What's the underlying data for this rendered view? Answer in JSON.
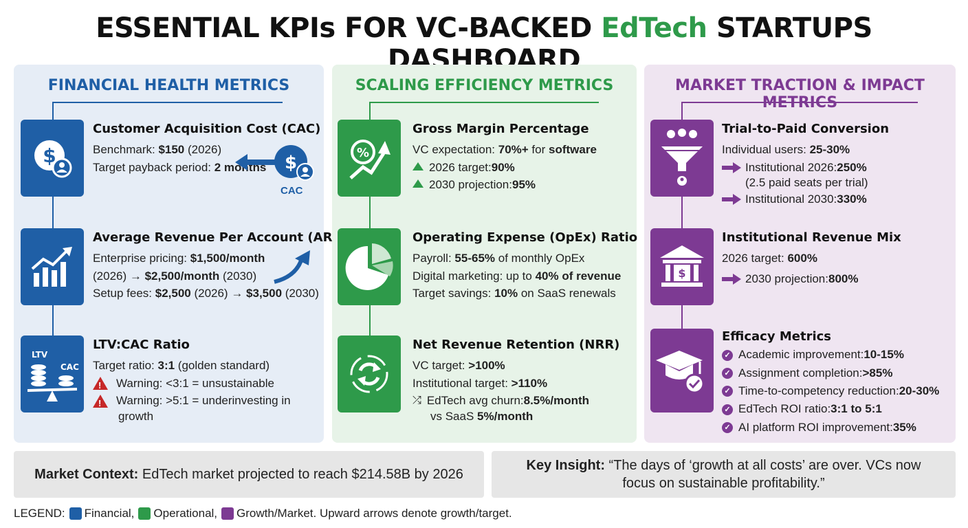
{
  "title": {
    "part1": "ESSENTIAL KPIs FOR VC-BACKED ",
    "accent": "EdTech",
    "part2": " STARTUPS DASHBOARD"
  },
  "colors": {
    "financial": "#1f5fa6",
    "operational": "#2e9a4a",
    "growth": "#7d3a93",
    "warning": "#c62828"
  },
  "financial": {
    "title": "FINANCIAL HEALTH METRICS",
    "cac": {
      "icon": "dollar-user-icon",
      "heading": "Customer Acquisition Cost (CAC)",
      "benchmark_label": "Benchmark: ",
      "benchmark_value": "$150",
      "benchmark_year": " (2026)",
      "payback_label": "Target payback period: ",
      "payback_value": "2 months",
      "badge": "CAC"
    },
    "arpa": {
      "icon": "growth-bars-icon",
      "heading": "Average Revenue Per Account (ARPA)",
      "line1_label": "Enterprise pricing: ",
      "line1_value": "$1,500/month",
      "line2_pre": "(2026) → ",
      "line2_value": "$2,500/month",
      "line2_post": " (2030)",
      "line3_label": "Setup fees: ",
      "line3_v1": "$2,500",
      "line3_mid": " (2026) → ",
      "line3_v2": "$3,500",
      "line3_post": " (2030)"
    },
    "ltv": {
      "icon": "balance-scale-icon",
      "heading": "LTV:CAC Ratio",
      "icon_left": "LTV",
      "icon_right": "CAC",
      "target_label": "Target ratio: ",
      "target_value": "3:1",
      "target_note": " (golden standard)",
      "warn1": "Warning: <3:1 = unsustainable",
      "warn2a": "Warning: >5:1 = underinvesting in",
      "warn2b": "growth"
    }
  },
  "scaling": {
    "title": "SCALING EFFICIENCY METRICS",
    "gm": {
      "icon": "percent-growth-icon",
      "heading": "Gross Margin Percentage",
      "exp_label": "VC expectation: ",
      "exp_value": "70%+",
      "exp_mid": " for ",
      "exp_end": "software",
      "t2026_label": "2026 target: ",
      "t2026_value": "90%",
      "t2030_label": "2030 projection: ",
      "t2030_value": "95%"
    },
    "opex": {
      "icon": "pie-chart-icon",
      "heading": "Operating Expense (OpEx) Ratio",
      "payroll_label": "Payroll: ",
      "payroll_value": "55-65%",
      "payroll_post": " of monthly OpEx",
      "dm_label": "Digital marketing: up to ",
      "dm_value": "40% of revenue",
      "sav_label": "Target savings: ",
      "sav_value": "10%",
      "sav_post": " on SaaS renewals"
    },
    "nrr": {
      "icon": "refresh-cycle-icon",
      "heading": "Net Revenue Retention (NRR)",
      "vc_label": "VC target: ",
      "vc_value": ">100%",
      "inst_label": "Institutional target: ",
      "inst_value": ">110%",
      "churn_label": "EdTech avg churn: ",
      "churn_value": "8.5%/month",
      "vs_label": "vs SaaS ",
      "vs_value": "5%/month"
    }
  },
  "traction": {
    "title": "MARKET TRACTION & IMPACT METRICS",
    "trial": {
      "icon": "funnel-users-icon",
      "heading": "Trial-to-Paid Conversion",
      "ind_label": "Individual users: ",
      "ind_value": "25-30%",
      "inst26_label": "Institutional 2026: ",
      "inst26_value": "250%",
      "inst26_note": "(2.5 paid seats per trial)",
      "inst30_label": "Institutional 2030: ",
      "inst30_value": "330%"
    },
    "mix": {
      "icon": "bank-building-icon",
      "heading": "Institutional Revenue Mix",
      "t26_label": "2026 target: ",
      "t26_value": "600%",
      "t30_label": "2030 projection: ",
      "t30_value": "800%"
    },
    "efficacy": {
      "icon": "graduation-cap-icon",
      "heading": "Efficacy Metrics",
      "items": [
        {
          "label": "Academic improvement: ",
          "value": "10-15%"
        },
        {
          "label": "Assignment completion: ",
          "value": ">85%"
        },
        {
          "label": "Time-to-competency reduction: ",
          "value": "20-30%"
        },
        {
          "label": "EdTech ROI ratio: ",
          "value": "3:1 to 5:1"
        },
        {
          "label": "AI platform ROI improvement: ",
          "value": "35%"
        }
      ]
    }
  },
  "market_context": {
    "label": "Market Context:",
    "text": " EdTech market projected to reach $214.58B by 2026"
  },
  "key_insight": {
    "label": "Key Insight:",
    "line1": " “The days of ‘growth at all costs’ are over. VCs now",
    "line2": "focus on sustainable profitability.”"
  },
  "legend": {
    "label": "LEGEND: ",
    "financial": "Financial, ",
    "operational": "Operational, ",
    "growth": "Growth/Market. Upward arrows denote growth/target."
  }
}
